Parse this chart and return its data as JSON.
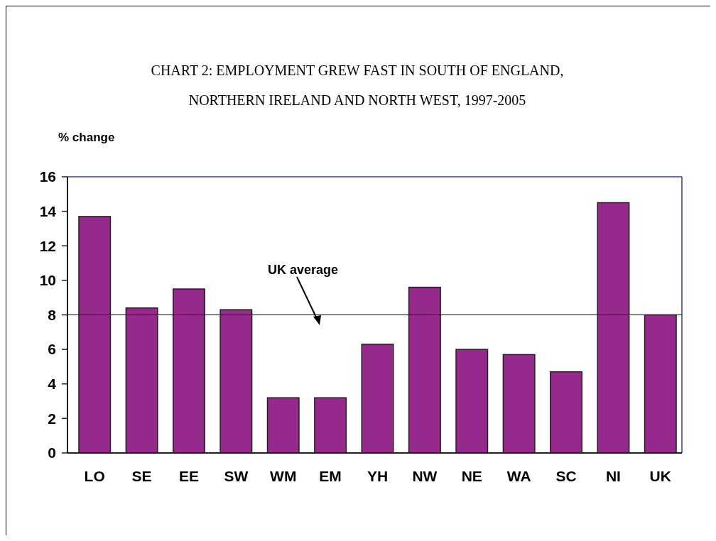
{
  "chart_data": {
    "type": "bar",
    "title": "CHART 2:  EMPLOYMENT GREW FAST IN SOUTH OF ENGLAND,\nNORTHERN IRELAND AND NORTH WEST, 1997-2005",
    "ylabel": "% change",
    "categories": [
      "LO",
      "SE",
      "EE",
      "SW",
      "WM",
      "EM",
      "YH",
      "NW",
      "NE",
      "WA",
      "SC",
      "NI",
      "UK"
    ],
    "values": [
      13.7,
      8.4,
      9.5,
      8.3,
      3.2,
      3.2,
      6.3,
      9.6,
      6.0,
      5.7,
      4.7,
      14.5,
      8.0
    ],
    "color": "#952a8c",
    "ylim": [
      0,
      16
    ],
    "yticks": [
      0,
      2,
      4,
      6,
      8,
      10,
      12,
      14,
      16
    ],
    "grid": false,
    "ref_lines": [
      {
        "axis": "y",
        "value": 8,
        "label": "UK average",
        "color": "#000000"
      }
    ]
  }
}
